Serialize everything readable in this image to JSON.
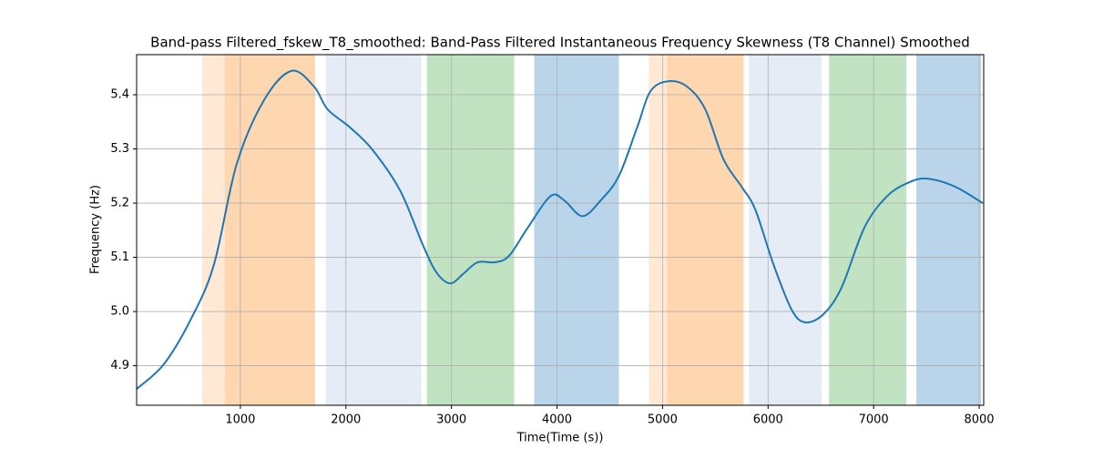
{
  "chart_data": {
    "type": "line",
    "title": "Band-pass Filtered_fskew_T8_smoothed: Band-Pass Filtered Instantaneous Frequency Skewness (T8 Channel) Smoothed",
    "x_label": "Time(Time (s))",
    "y_label": "Frequency (Hz)",
    "xlim": [
      17,
      8043
    ],
    "ylim": [
      4.827,
      5.474
    ],
    "xticks": [
      1000,
      2000,
      3000,
      4000,
      5000,
      6000,
      7000,
      8000
    ],
    "yticks": [
      4.9,
      {
        "value": 5,
        "label": "5.0"
      },
      5.1,
      5.2,
      5.3,
      5.4
    ],
    "grid": true,
    "bands": [
      {
        "start": 638,
        "end": 1707,
        "color": "#ffe8d4"
      },
      {
        "start": 853,
        "end": 1707,
        "color": "#fed6b0"
      },
      {
        "start": 1810,
        "end": 2715,
        "color": "#e5ecf6"
      },
      {
        "start": 2767,
        "end": 3595,
        "color": "#c1e3c1"
      },
      {
        "start": 3784,
        "end": 4586,
        "color": "#bad5e9"
      },
      {
        "start": 4870,
        "end": 5767,
        "color": "#ffe8d4"
      },
      {
        "start": 5043,
        "end": 5767,
        "color": "#fed6b0"
      },
      {
        "start": 5819,
        "end": 6508,
        "color": "#e5ecf6"
      },
      {
        "start": 6577,
        "end": 7310,
        "color": "#c1e3c1"
      },
      {
        "start": 7405,
        "end": 8017,
        "color": "#bad5e9"
      }
    ],
    "series": [
      {
        "color": "#1f77b4",
        "x": [
          17,
          276,
          534,
          750,
          965,
          1224,
          1483,
          1698,
          1827,
          2043,
          2258,
          2517,
          2733,
          2862,
          2991,
          3120,
          3250,
          3422,
          3551,
          3724,
          3939,
          4069,
          4241,
          4414,
          4586,
          4758,
          4888,
          5060,
          5233,
          5405,
          5577,
          5750,
          5879,
          6051,
          6224,
          6353,
          6525,
          6698,
          6913,
          7129,
          7344,
          7517,
          7775,
          8034
        ],
        "values": [
          4.857,
          4.903,
          4.987,
          5.087,
          5.272,
          5.39,
          5.444,
          5.415,
          5.373,
          5.339,
          5.297,
          5.222,
          5.121,
          5.071,
          5.052,
          5.071,
          5.091,
          5.091,
          5.104,
          5.155,
          5.213,
          5.205,
          5.176,
          5.205,
          5.25,
          5.339,
          5.407,
          5.425,
          5.415,
          5.373,
          5.281,
          5.23,
          5.188,
          5.087,
          5.003,
          4.98,
          4.995,
          5.045,
          5.155,
          5.213,
          5.239,
          5.245,
          5.23,
          5.2
        ]
      }
    ]
  }
}
